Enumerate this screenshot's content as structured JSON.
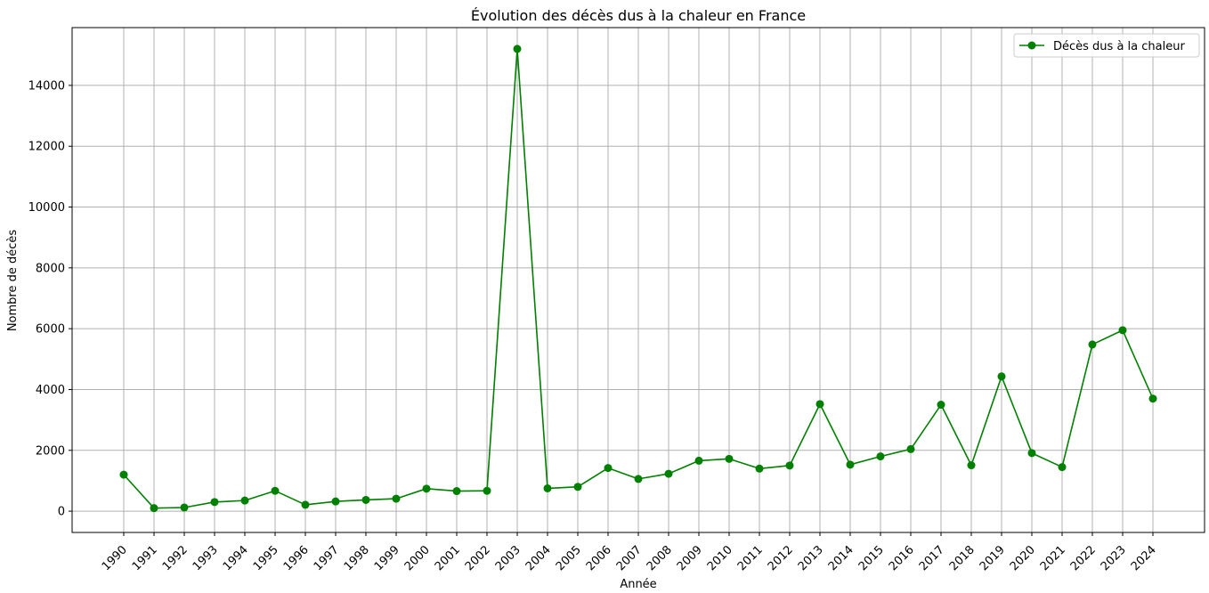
{
  "chart_data": {
    "type": "line",
    "title": "Évolution des décès dus à la chaleur en France",
    "xlabel": "Année",
    "ylabel": "Nombre de décès",
    "x": [
      "1990",
      "1991",
      "1992",
      "1993",
      "1994",
      "1995",
      "1996",
      "1997",
      "1998",
      "1999",
      "2000",
      "2001",
      "2002",
      "2003",
      "2004",
      "2005",
      "2006",
      "2007",
      "2008",
      "2009",
      "2010",
      "2011",
      "2012",
      "2013",
      "2014",
      "2015",
      "2016",
      "2017",
      "2018",
      "2019",
      "2020",
      "2021",
      "2022",
      "2023",
      "2024"
    ],
    "series": [
      {
        "name": "Décès dus à la chaleur",
        "color": "#008000",
        "marker": "circle",
        "values": [
          1200,
          100,
          120,
          300,
          350,
          670,
          210,
          320,
          370,
          410,
          740,
          660,
          670,
          15200,
          750,
          800,
          1420,
          1060,
          1230,
          1660,
          1720,
          1400,
          1500,
          3520,
          1530,
          1800,
          2040,
          3500,
          1510,
          4430,
          1910,
          1450,
          5480,
          5950,
          3700
        ]
      }
    ],
    "ylim": [
      -700,
      15900
    ],
    "yticks": [
      0,
      2000,
      4000,
      6000,
      8000,
      10000,
      12000,
      14000
    ],
    "grid": true,
    "legend_position": "top-right"
  }
}
